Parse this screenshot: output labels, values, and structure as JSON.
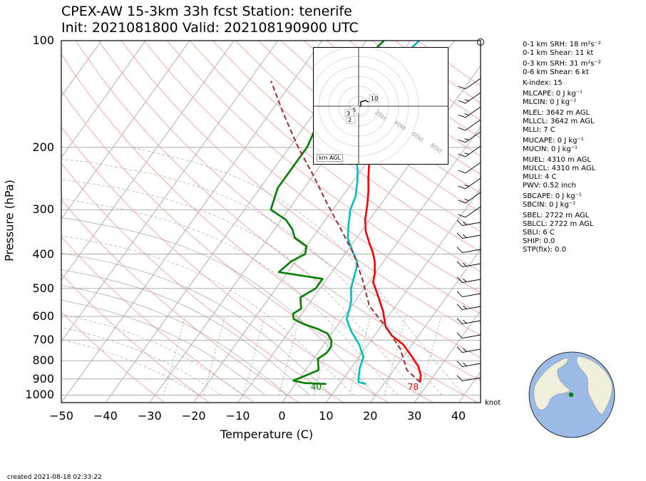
{
  "title": {
    "line1": "CPEX-AW 15-3km  33h fcst  Station: tenerife",
    "line2": "Init: 2021081800  Valid: 202108190900 UTC"
  },
  "chart_data": {
    "type": "line",
    "xlabel": "Temperature (C)",
    "ylabel": "Pressure (hPa)",
    "xlim": [
      -50,
      45
    ],
    "ylim": [
      1050,
      100
    ],
    "yscale": "log",
    "xticks": [
      "−50",
      "−40",
      "−30",
      "−20",
      "−10",
      "0",
      "10",
      "20",
      "30",
      "40"
    ],
    "yticks": [
      "100",
      "200",
      "300",
      "400",
      "500",
      "600",
      "700",
      "800",
      "900",
      "1000"
    ],
    "series": [
      {
        "name": "",
        "color": "#ff0000",
        "points": [
          [
            28,
            920
          ],
          [
            27,
            880
          ],
          [
            25,
            830
          ],
          [
            22,
            780
          ],
          [
            18,
            720
          ],
          [
            14,
            680
          ],
          [
            11,
            640
          ],
          [
            8,
            580
          ],
          [
            4,
            520
          ],
          [
            1,
            480
          ],
          [
            0,
            455
          ],
          [
            -2,
            420
          ],
          [
            -4,
            395
          ],
          [
            -6,
            375
          ],
          [
            -9,
            345
          ],
          [
            -11,
            320
          ],
          [
            -13,
            290
          ],
          [
            -15,
            265
          ],
          [
            -17,
            245
          ],
          [
            -19,
            225
          ],
          [
            -21,
            210
          ],
          [
            -23,
            195
          ],
          [
            -25,
            180
          ],
          [
            -27,
            165
          ],
          [
            -28,
            150
          ],
          [
            -29,
            135
          ],
          [
            -30,
            120
          ],
          [
            -29,
            110
          ],
          [
            -28,
            100
          ]
        ]
      },
      {
        "name": "",
        "color": "#00bfc4",
        "points": [
          [
            16,
            930
          ],
          [
            14,
            920
          ],
          [
            13,
            880
          ],
          [
            12,
            840
          ],
          [
            11,
            780
          ],
          [
            8,
            720
          ],
          [
            4,
            660
          ],
          [
            1,
            610
          ],
          [
            0,
            570
          ],
          [
            -1,
            540
          ],
          [
            -3,
            500
          ],
          [
            -4,
            470
          ],
          [
            -5,
            440
          ],
          [
            -6,
            420
          ],
          [
            -9,
            390
          ],
          [
            -12,
            360
          ],
          [
            -14,
            330
          ],
          [
            -16,
            300
          ],
          [
            -17,
            275
          ],
          [
            -19,
            250
          ],
          [
            -21,
            230
          ],
          [
            -24,
            210
          ],
          [
            -26,
            190
          ],
          [
            -28,
            170
          ],
          [
            -29,
            150
          ],
          [
            -30,
            135
          ],
          [
            -30,
            120
          ],
          [
            -29,
            110
          ],
          [
            -28,
            100
          ]
        ]
      },
      {
        "name": "",
        "color": "#008000",
        "points": [
          [
            7,
            930
          ],
          [
            2,
            925
          ],
          [
            -1,
            910
          ],
          [
            1,
            880
          ],
          [
            3,
            850
          ],
          [
            2,
            820
          ],
          [
            1,
            790
          ],
          [
            2,
            760
          ],
          [
            2,
            730
          ],
          [
            1,
            700
          ],
          [
            -1,
            670
          ],
          [
            -4,
            650
          ],
          [
            -8,
            630
          ],
          [
            -11,
            610
          ],
          [
            -12,
            590
          ],
          [
            -11,
            570
          ],
          [
            -12,
            550
          ],
          [
            -13,
            530
          ],
          [
            -11,
            500
          ],
          [
            -11,
            470
          ],
          [
            -22,
            450
          ],
          [
            -21,
            420
          ],
          [
            -19,
            400
          ],
          [
            -20,
            380
          ],
          [
            -24,
            360
          ],
          [
            -26,
            340
          ],
          [
            -29,
            320
          ],
          [
            -34,
            300
          ],
          [
            -35,
            280
          ],
          [
            -36,
            260
          ],
          [
            -36,
            240
          ],
          [
            -36,
            220
          ],
          [
            -36,
            200
          ],
          [
            -37,
            180
          ],
          [
            -39,
            160
          ],
          [
            -40,
            140
          ],
          [
            -40,
            130
          ],
          [
            -39,
            120
          ],
          [
            -37,
            110
          ],
          [
            -36,
            100
          ]
        ]
      },
      {
        "name": "",
        "color": "#a52a2a",
        "dashed": true,
        "points": [
          [
            28,
            920
          ],
          [
            23,
            850
          ],
          [
            18,
            740
          ],
          [
            11,
            640
          ],
          [
            4,
            560
          ],
          [
            -2,
            470
          ],
          [
            -8,
            400
          ],
          [
            -15,
            340
          ],
          [
            -22,
            290
          ],
          [
            -30,
            240
          ],
          [
            -38,
            200
          ],
          [
            -47,
            160
          ],
          [
            -55,
            130
          ]
        ]
      }
    ],
    "annotations": [
      {
        "text": "40",
        "x": 6,
        "p": 980,
        "color": "#008000"
      },
      {
        "text": "78",
        "x": 28,
        "p": 980,
        "color": "#ff0000"
      }
    ],
    "wind_barbs_unit": "knot",
    "hodograph": {
      "ring_labels": [
        "20kt",
        "40kt",
        "60kt",
        "80kt"
      ],
      "height_labels": [
        "10",
        "6",
        "3",
        "2"
      ],
      "legend": "km AGL"
    }
  },
  "indices": [
    "0-1 km SRH: 18 m²s⁻²",
    "0-1 km Shear: 11 kt",
    "0-3 km SRH: 31 m²s⁻²",
    "0-6 km Shear: 6 kt",
    "K-index: 15",
    "MLCAPE: 0 J kg⁻¹",
    "MLCIN: 0 J kg⁻¹",
    "MLEL: 3642 m AGL",
    "MLLCL: 3642 m AGL",
    "MLLI: 7 C",
    "MUCAPE: 0 J kg⁻¹",
    "MUCIN: 0 J kg⁻¹",
    "MUEL: 4310 m AGL",
    "MULCL: 4310 m AGL",
    "MULI: 4 C",
    "PWV: 0.52 inch",
    "SBCAPE: 0 J kg⁻¹",
    "SBCIN: 0 J kg⁻¹",
    "SBEL: 2722 m AGL",
    "SBLCL: 2722 m AGL",
    "SBLI: 6 C",
    "SHIP: 0.0",
    "STP(fix): 0.0"
  ],
  "created": "created 2021-08-18 02:33:22",
  "colors": {
    "temp": "#ff0000",
    "dewpoint": "#008000",
    "wetbulb": "#00bfc4",
    "parcel": "#a52a2a",
    "ocean": "#9bbbe6",
    "land": "#efefdc"
  }
}
